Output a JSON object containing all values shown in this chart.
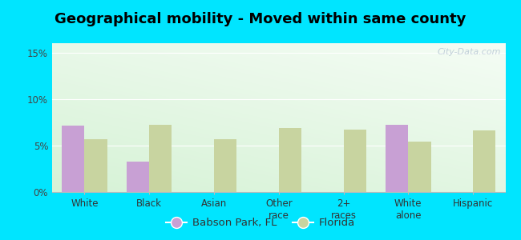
{
  "title": "Geographical mobility - Moved within same county",
  "categories": [
    "White",
    "Black",
    "Asian",
    "Other\nrace",
    "2+\nraces",
    "White\nalone",
    "Hispanic"
  ],
  "babson_values": [
    7.1,
    3.3,
    0.0,
    0.0,
    0.0,
    7.2,
    0.0
  ],
  "florida_values": [
    5.7,
    7.2,
    5.7,
    6.9,
    6.7,
    5.4,
    6.6
  ],
  "babson_color": "#c8a0d4",
  "florida_color": "#c8d4a0",
  "ylim": [
    0,
    16
  ],
  "yticks": [
    0,
    5,
    10,
    15
  ],
  "ytick_labels": [
    "0%",
    "5%",
    "10%",
    "15%"
  ],
  "bar_width": 0.35,
  "legend_labels": [
    "Babson Park, FL",
    "Florida"
  ],
  "outer_bg": "#00e5ff",
  "title_fontsize": 13,
  "axis_fontsize": 8.5,
  "legend_fontsize": 9.5,
  "grad_colors": [
    "#c8e8c8",
    "#e8f5e8",
    "#f0faf4",
    "#f8fffe"
  ],
  "watermark": "City-Data.com"
}
